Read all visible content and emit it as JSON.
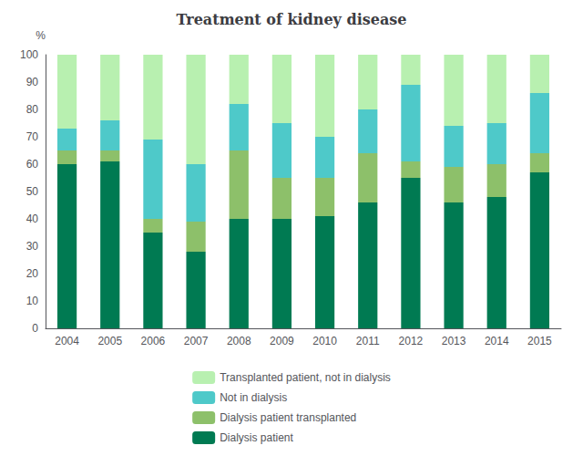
{
  "chart_data": {
    "type": "bar",
    "title": "Treatment of kidney disease",
    "ylabel": "%",
    "categories": [
      "2004",
      "2005",
      "2006",
      "2007",
      "2008",
      "2009",
      "2010",
      "2011",
      "2012",
      "2013",
      "2014",
      "2015"
    ],
    "series": [
      {
        "name": "Dialysis patient",
        "color": "#007a52",
        "values": [
          60,
          61,
          35,
          28,
          40,
          40,
          41,
          46,
          55,
          46,
          48,
          57
        ]
      },
      {
        "name": "Dialysis patient transplanted",
        "color": "#8dc06a",
        "values": [
          5,
          4,
          5,
          11,
          25,
          15,
          14,
          18,
          6,
          13,
          12,
          7
        ]
      },
      {
        "name": "Not in dialysis",
        "color": "#4ec9c9",
        "values": [
          8,
          11,
          29,
          21,
          17,
          20,
          15,
          16,
          28,
          15,
          15,
          22
        ]
      },
      {
        "name": "Transplanted patient, not in dialysis",
        "color": "#b8f0b0",
        "values": [
          27,
          24,
          31,
          40,
          18,
          25,
          30,
          20,
          11,
          26,
          25,
          14
        ]
      }
    ],
    "ylim": [
      0,
      100
    ],
    "yticks": [
      0,
      10,
      20,
      30,
      40,
      50,
      60,
      70,
      80,
      90,
      100
    ],
    "stacked": true,
    "grid": false,
    "legend": "bottom"
  }
}
